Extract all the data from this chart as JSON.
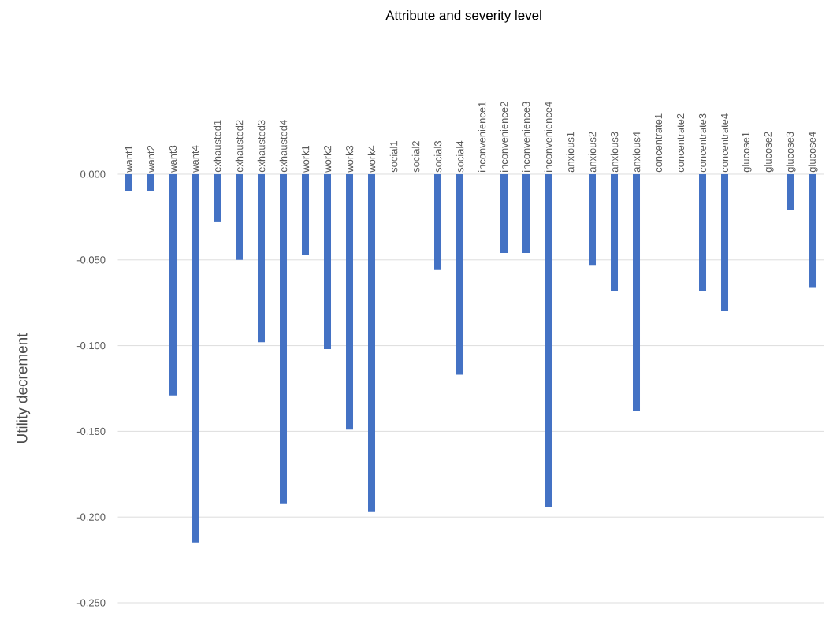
{
  "chart_data": {
    "type": "bar",
    "title": "Attribute and severity level",
    "ylabel": "Utility decrement",
    "categories": [
      "want1",
      "want2",
      "want3",
      "want4",
      "exhausted1",
      "exhausted2",
      "exhausted3",
      "exhausted4",
      "work1",
      "work2",
      "work3",
      "work4",
      "social1",
      "social2",
      "social3",
      "social4",
      "inconvenience1",
      "inconvenience2",
      "inconvenience3",
      "inconvenience4",
      "anxious1",
      "anxious2",
      "anxious3",
      "anxious4",
      "concentrate1",
      "concentrate2",
      "concentrate3",
      "concentrate4",
      "glucose1",
      "glucose2",
      "glucose3",
      "glucose4"
    ],
    "values": [
      -0.01,
      -0.01,
      -0.129,
      -0.215,
      -0.028,
      -0.05,
      -0.098,
      -0.192,
      -0.047,
      -0.102,
      -0.149,
      -0.197,
      0,
      0,
      -0.056,
      -0.117,
      0,
      -0.046,
      -0.046,
      -0.194,
      0,
      -0.053,
      -0.068,
      -0.138,
      0,
      0,
      -0.068,
      -0.08,
      0,
      0,
      -0.021,
      -0.066
    ],
    "color": "#4472c4",
    "ylim": [
      -0.25,
      0
    ],
    "yticks": [
      {
        "value": 0,
        "label": "0.000"
      },
      {
        "value": -0.05,
        "label": "-0.050"
      },
      {
        "value": -0.1,
        "label": "-0.100"
      },
      {
        "value": -0.15,
        "label": "-0.150"
      },
      {
        "value": -0.2,
        "label": "-0.200"
      },
      {
        "value": -0.25,
        "label": "-0.250"
      }
    ],
    "grid": "y"
  }
}
